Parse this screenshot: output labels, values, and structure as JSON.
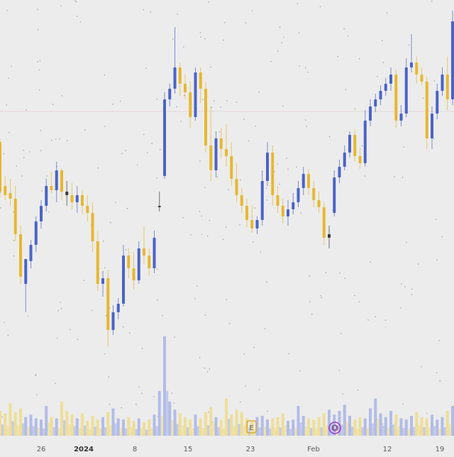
{
  "chart_data": {
    "type": "candlestick",
    "grid": false,
    "legend": "none",
    "x_tick_labels": [
      "26",
      "2024",
      "8",
      "15",
      "23",
      "Feb",
      "12",
      "19"
    ],
    "bold_tick_labels": [
      "2024"
    ],
    "markers": [
      {
        "symbol": "E",
        "color": "#d8a020"
      },
      {
        "symbol": "D",
        "color": "#9a33c8"
      }
    ],
    "colors": {
      "up": "#4a63c8",
      "down": "#e6b830",
      "doji": "#3b3b3b",
      "background": "#ececec",
      "volume_up": "#a8b4e6",
      "volume_down": "#eedc88",
      "reference_line": "#e2d6d6"
    },
    "reference_level": 157,
    "series": [
      {
        "t": 0,
        "o": 200,
        "h": 195,
        "l": 278,
        "c": 270
      },
      {
        "t": 1,
        "o": 262,
        "h": 248,
        "l": 282,
        "c": 275
      },
      {
        "t": 2,
        "o": 272,
        "h": 252,
        "l": 290,
        "c": 280
      },
      {
        "t": 3,
        "o": 280,
        "h": 262,
        "l": 340,
        "c": 330
      },
      {
        "t": 4,
        "o": 330,
        "h": 318,
        "l": 400,
        "c": 390
      },
      {
        "t": 5,
        "o": 400,
        "h": 380,
        "l": 440,
        "c": 365
      },
      {
        "t": 6,
        "o": 368,
        "h": 338,
        "l": 378,
        "c": 345
      },
      {
        "t": 7,
        "o": 345,
        "h": 305,
        "l": 355,
        "c": 312
      },
      {
        "t": 8,
        "o": 312,
        "h": 282,
        "l": 322,
        "c": 290
      },
      {
        "t": 9,
        "o": 290,
        "h": 252,
        "l": 298,
        "c": 262
      },
      {
        "t": 10,
        "o": 262,
        "h": 242,
        "l": 272,
        "c": 268
      },
      {
        "t": 11,
        "o": 268,
        "h": 228,
        "l": 285,
        "c": 240
      },
      {
        "t": 12,
        "o": 240,
        "h": 238,
        "l": 282,
        "c": 270
      },
      {
        "t": 13,
        "o": 270,
        "h": 255,
        "l": 290,
        "c": 275
      },
      {
        "t": 14,
        "o": 275,
        "h": 258,
        "l": 295,
        "c": 285
      },
      {
        "t": 15,
        "o": 285,
        "h": 262,
        "l": 300,
        "c": 275
      },
      {
        "t": 16,
        "o": 275,
        "h": 268,
        "l": 302,
        "c": 290
      },
      {
        "t": 17,
        "o": 290,
        "h": 275,
        "l": 312,
        "c": 300
      },
      {
        "t": 18,
        "o": 300,
        "h": 285,
        "l": 355,
        "c": 340
      },
      {
        "t": 19,
        "o": 340,
        "h": 325,
        "l": 410,
        "c": 400
      },
      {
        "t": 20,
        "o": 400,
        "h": 382,
        "l": 418,
        "c": 392
      },
      {
        "t": 21,
        "o": 392,
        "h": 380,
        "l": 488,
        "c": 465
      },
      {
        "t": 22,
        "o": 465,
        "h": 430,
        "l": 472,
        "c": 440
      },
      {
        "t": 23,
        "o": 440,
        "h": 420,
        "l": 450,
        "c": 428
      },
      {
        "t": 24,
        "o": 428,
        "h": 345,
        "l": 432,
        "c": 360
      },
      {
        "t": 25,
        "o": 360,
        "h": 350,
        "l": 392,
        "c": 378
      },
      {
        "t": 26,
        "o": 378,
        "h": 355,
        "l": 408,
        "c": 395
      },
      {
        "t": 27,
        "o": 395,
        "h": 340,
        "l": 400,
        "c": 350
      },
      {
        "t": 28,
        "o": 350,
        "h": 318,
        "l": 372,
        "c": 360
      },
      {
        "t": 29,
        "o": 360,
        "h": 350,
        "l": 388,
        "c": 378
      },
      {
        "t": 30,
        "o": 378,
        "h": 325,
        "l": 385,
        "c": 335
      },
      {
        "t": 31,
        "o": 292,
        "h": 270,
        "l": 298,
        "c": 290
      },
      {
        "t": 32,
        "o": 248,
        "h": 130,
        "l": 252,
        "c": 140
      },
      {
        "t": 33,
        "o": 140,
        "h": 118,
        "l": 150,
        "c": 125
      },
      {
        "t": 34,
        "o": 125,
        "h": 38,
        "l": 132,
        "c": 95
      },
      {
        "t": 35,
        "o": 95,
        "h": 88,
        "l": 135,
        "c": 118
      },
      {
        "t": 36,
        "o": 118,
        "h": 105,
        "l": 140,
        "c": 130
      },
      {
        "t": 37,
        "o": 130,
        "h": 115,
        "l": 180,
        "c": 165
      },
      {
        "t": 38,
        "o": 165,
        "h": 95,
        "l": 170,
        "c": 102
      },
      {
        "t": 39,
        "o": 102,
        "h": 95,
        "l": 145,
        "c": 125
      },
      {
        "t": 40,
        "o": 125,
        "h": 115,
        "l": 215,
        "c": 205
      },
      {
        "t": 41,
        "o": 205,
        "h": 150,
        "l": 255,
        "c": 240
      },
      {
        "t": 42,
        "o": 240,
        "h": 185,
        "l": 250,
        "c": 195
      },
      {
        "t": 43,
        "o": 195,
        "h": 180,
        "l": 222,
        "c": 210
      },
      {
        "t": 44,
        "o": 210,
        "h": 175,
        "l": 235,
        "c": 220
      },
      {
        "t": 45,
        "o": 220,
        "h": 200,
        "l": 262,
        "c": 252
      },
      {
        "t": 46,
        "o": 252,
        "h": 230,
        "l": 285,
        "c": 275
      },
      {
        "t": 47,
        "o": 275,
        "h": 265,
        "l": 300,
        "c": 290
      },
      {
        "t": 48,
        "o": 290,
        "h": 280,
        "l": 320,
        "c": 310
      },
      {
        "t": 49,
        "o": 310,
        "h": 290,
        "l": 328,
        "c": 322
      },
      {
        "t": 50,
        "o": 322,
        "h": 305,
        "l": 330,
        "c": 310
      },
      {
        "t": 51,
        "o": 310,
        "h": 240,
        "l": 318,
        "c": 255
      },
      {
        "t": 52,
        "o": 255,
        "h": 200,
        "l": 262,
        "c": 215
      },
      {
        "t": 53,
        "o": 215,
        "h": 205,
        "l": 290,
        "c": 275
      },
      {
        "t": 54,
        "o": 275,
        "h": 262,
        "l": 300,
        "c": 290
      },
      {
        "t": 55,
        "o": 290,
        "h": 280,
        "l": 315,
        "c": 305
      },
      {
        "t": 56,
        "o": 305,
        "h": 282,
        "l": 318,
        "c": 295
      },
      {
        "t": 57,
        "o": 295,
        "h": 272,
        "l": 302,
        "c": 285
      },
      {
        "t": 58,
        "o": 285,
        "h": 255,
        "l": 292,
        "c": 265
      },
      {
        "t": 59,
        "o": 265,
        "h": 235,
        "l": 275,
        "c": 245
      },
      {
        "t": 60,
        "o": 245,
        "h": 238,
        "l": 275,
        "c": 265
      },
      {
        "t": 61,
        "o": 265,
        "h": 255,
        "l": 292,
        "c": 282
      },
      {
        "t": 62,
        "o": 282,
        "h": 270,
        "l": 300,
        "c": 292
      },
      {
        "t": 63,
        "o": 292,
        "h": 285,
        "l": 345,
        "c": 335
      },
      {
        "t": 64,
        "o": 335,
        "h": 318,
        "l": 350,
        "c": 330
      },
      {
        "t": 65,
        "o": 300,
        "h": 240,
        "l": 305,
        "c": 250
      },
      {
        "t": 66,
        "o": 250,
        "h": 225,
        "l": 258,
        "c": 235
      },
      {
        "t": 67,
        "o": 235,
        "h": 205,
        "l": 240,
        "c": 215
      },
      {
        "t": 68,
        "o": 215,
        "h": 185,
        "l": 222,
        "c": 190
      },
      {
        "t": 69,
        "o": 190,
        "h": 182,
        "l": 228,
        "c": 220
      },
      {
        "t": 70,
        "o": 220,
        "h": 208,
        "l": 238,
        "c": 230
      },
      {
        "t": 71,
        "o": 230,
        "h": 155,
        "l": 235,
        "c": 170
      },
      {
        "t": 72,
        "o": 170,
        "h": 140,
        "l": 178,
        "c": 150
      },
      {
        "t": 73,
        "o": 150,
        "h": 132,
        "l": 158,
        "c": 140
      },
      {
        "t": 74,
        "o": 140,
        "h": 120,
        "l": 148,
        "c": 128
      },
      {
        "t": 75,
        "o": 128,
        "h": 110,
        "l": 135,
        "c": 118
      },
      {
        "t": 76,
        "o": 118,
        "h": 95,
        "l": 128,
        "c": 105
      },
      {
        "t": 77,
        "o": 105,
        "h": 98,
        "l": 180,
        "c": 170
      },
      {
        "t": 78,
        "o": 170,
        "h": 148,
        "l": 178,
        "c": 160
      },
      {
        "t": 79,
        "o": 160,
        "h": 82,
        "l": 165,
        "c": 95
      },
      {
        "t": 80,
        "o": 95,
        "h": 48,
        "l": 102,
        "c": 88
      },
      {
        "t": 81,
        "o": 88,
        "h": 80,
        "l": 118,
        "c": 105
      },
      {
        "t": 82,
        "o": 105,
        "h": 95,
        "l": 120,
        "c": 115
      },
      {
        "t": 83,
        "o": 115,
        "h": 108,
        "l": 210,
        "c": 195
      },
      {
        "t": 84,
        "o": 195,
        "h": 150,
        "l": 210,
        "c": 160
      },
      {
        "t": 85,
        "o": 160,
        "h": 118,
        "l": 168,
        "c": 128
      },
      {
        "t": 86,
        "o": 128,
        "h": 95,
        "l": 135,
        "c": 105
      },
      {
        "t": 87,
        "o": 105,
        "h": 80,
        "l": 155,
        "c": 140
      },
      {
        "t": 88,
        "o": 140,
        "h": 15,
        "l": 148,
        "c": 30
      }
    ],
    "volume": [
      40,
      36,
      52,
      38,
      44,
      30,
      34,
      28,
      26,
      48,
      30,
      28,
      55,
      40,
      34,
      28,
      36,
      24,
      32,
      26,
      30,
      38,
      44,
      28,
      26,
      30,
      24,
      28,
      22,
      26,
      34,
      72,
      160,
      55,
      42,
      36,
      30,
      26,
      34,
      28,
      38,
      46,
      30,
      26,
      60,
      34,
      42,
      38,
      28,
      24,
      30,
      32,
      26,
      28,
      30,
      36,
      24,
      26,
      48,
      32,
      28,
      26,
      30,
      36,
      42,
      34,
      40,
      50,
      32,
      26,
      30,
      28,
      44,
      60,
      36,
      30,
      40,
      34,
      28,
      26,
      32,
      38,
      30,
      28,
      34,
      26,
      30,
      40,
      48
    ],
    "volume_ylim": [
      0,
      160
    ]
  }
}
